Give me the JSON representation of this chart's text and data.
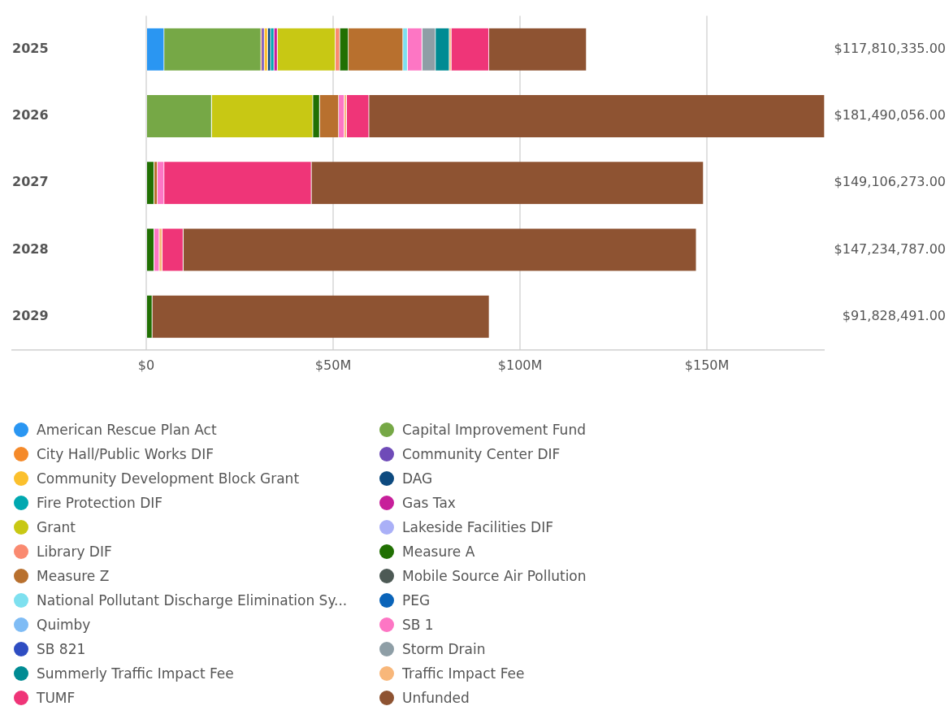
{
  "chart_data": {
    "type": "bar",
    "orientation": "horizontal",
    "stacked": true,
    "categories": [
      "2025",
      "2026",
      "2027",
      "2028",
      "2029"
    ],
    "xlim": [
      0,
      181.5
    ],
    "xticks": [
      {
        "value": 0,
        "label": "$0"
      },
      {
        "value": 50,
        "label": "$50M"
      },
      {
        "value": 100,
        "label": "$100M"
      },
      {
        "value": 150,
        "label": "$150M"
      }
    ],
    "grid": "x",
    "legend": "bottom",
    "annotations": [
      "$117,810,335.00",
      "$181,490,056.00",
      "$149,106,273.00",
      "$147,234,787.00",
      "$91,828,491.00"
    ],
    "series": [
      {
        "name": "American Rescue Plan Act",
        "color": "#2a96f2",
        "values": [
          4.8,
          null,
          null,
          null,
          null
        ]
      },
      {
        "name": "Capital Improvement Fund",
        "color": "#76a846",
        "values": [
          25.9,
          17.5,
          null,
          null,
          null
        ]
      },
      {
        "name": "City Hall/Public Works DIF",
        "color": "#f58a2a",
        "values": [
          0.2,
          null,
          null,
          null,
          null
        ]
      },
      {
        "name": "Community Center DIF",
        "color": "#6f4bb8",
        "values": [
          0.7,
          null,
          null,
          null,
          null
        ]
      },
      {
        "name": "Community Development Block Grant",
        "color": "#fbc02d",
        "values": [
          0.9,
          null,
          null,
          null,
          null
        ]
      },
      {
        "name": "DAG",
        "color": "#0d4a7f",
        "values": [
          0.8,
          null,
          null,
          null,
          null
        ]
      },
      {
        "name": "Fire Protection DIF",
        "color": "#00a8b0",
        "values": [
          0.9,
          null,
          null,
          null,
          null
        ]
      },
      {
        "name": "Gas Tax",
        "color": "#c71f9a",
        "values": [
          0.9,
          null,
          null,
          null,
          null
        ]
      },
      {
        "name": "Grant",
        "color": "#c8c814",
        "values": [
          15.5,
          27.1,
          null,
          null,
          null
        ]
      },
      {
        "name": "Lakeside Facilities DIF",
        "color": "#aab0f7",
        "values": [
          null,
          null,
          null,
          null,
          null
        ]
      },
      {
        "name": "Library DIF",
        "color": "#fa8a70",
        "values": [
          1.2,
          null,
          null,
          null,
          null
        ]
      },
      {
        "name": "Measure A",
        "color": "#217003",
        "values": [
          2.3,
          1.8,
          2.1,
          2.1,
          1.6
        ]
      },
      {
        "name": "Measure Z",
        "color": "#b8702e",
        "values": [
          14.6,
          5.1,
          0.9,
          null,
          null
        ]
      },
      {
        "name": "Mobile Source Air Pollution",
        "color": "#4d5a55",
        "values": [
          null,
          null,
          null,
          null,
          null
        ]
      },
      {
        "name": "National Pollutant Discharge Elimination Sy...",
        "color": "#7ee0ef",
        "values": [
          1.2,
          null,
          null,
          null,
          null
        ]
      },
      {
        "name": "PEG",
        "color": "#0a64b9",
        "values": [
          null,
          null,
          null,
          null,
          null
        ]
      },
      {
        "name": "Quimby",
        "color": "#7fbcf5",
        "values": [
          null,
          null,
          null,
          null,
          null
        ]
      },
      {
        "name": "SB 1",
        "color": "#fd76c4",
        "values": [
          3.9,
          1.5,
          1.8,
          1.4,
          null
        ]
      },
      {
        "name": "SB 821",
        "color": "#2e4dc2",
        "values": [
          null,
          null,
          null,
          null,
          null
        ]
      },
      {
        "name": "Storm Drain",
        "color": "#8e9ea6",
        "values": [
          3.6,
          null,
          null,
          null,
          null
        ]
      },
      {
        "name": "Summerly Traffic Impact Fee",
        "color": "#008b93",
        "values": [
          3.7,
          null,
          null,
          null,
          null
        ]
      },
      {
        "name": "Traffic Impact Fee",
        "color": "#f8b77a",
        "values": [
          0.5,
          0.6,
          null,
          0.8,
          null
        ]
      },
      {
        "name": "TUMF",
        "color": "#ef3578",
        "values": [
          10.1,
          6.0,
          39.4,
          5.6,
          null
        ]
      },
      {
        "name": "Unfunded",
        "color": "#8e5332",
        "values": [
          26.1,
          121.9,
          104.9,
          137.3,
          90.2
        ]
      }
    ]
  }
}
